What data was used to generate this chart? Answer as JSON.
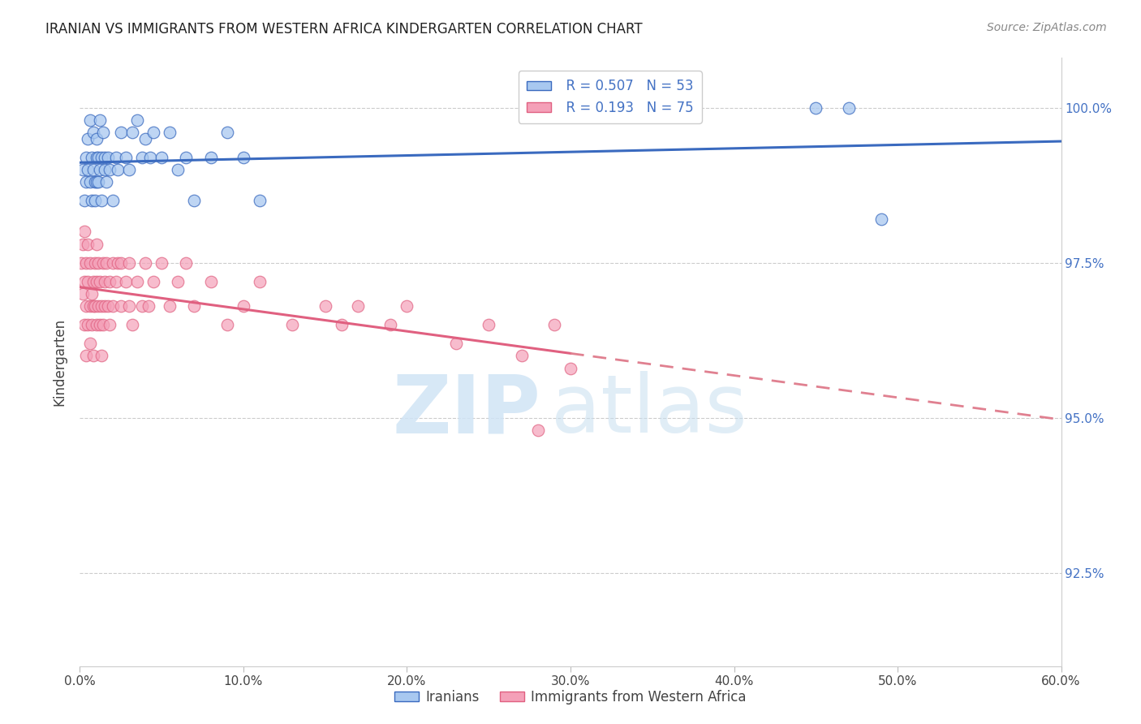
{
  "title": "IRANIAN VS IMMIGRANTS FROM WESTERN AFRICA KINDERGARTEN CORRELATION CHART",
  "source": "Source: ZipAtlas.com",
  "ylabel": "Kindergarten",
  "ytick_labels": [
    "92.5%",
    "95.0%",
    "97.5%",
    "100.0%"
  ],
  "ytick_values": [
    0.925,
    0.95,
    0.975,
    1.0
  ],
  "xmin": 0.0,
  "xmax": 0.6,
  "ymin": 0.91,
  "ymax": 1.008,
  "legend_r1": "R = 0.507",
  "legend_n1": "N = 53",
  "legend_r2": "R = 0.193",
  "legend_n2": "N = 75",
  "color_iranian": "#a8c8f0",
  "color_western_africa": "#f4a0b8",
  "color_line_iranian": "#3a6abf",
  "color_line_western_africa": "#e06080",
  "color_line_dashed": "#e08090",
  "watermark_zip": "ZIP",
  "watermark_atlas": "atlas",
  "iranians_x": [
    0.002,
    0.003,
    0.004,
    0.004,
    0.005,
    0.005,
    0.006,
    0.006,
    0.007,
    0.007,
    0.008,
    0.008,
    0.009,
    0.009,
    0.01,
    0.01,
    0.01,
    0.011,
    0.011,
    0.012,
    0.012,
    0.013,
    0.013,
    0.014,
    0.015,
    0.015,
    0.016,
    0.017,
    0.018,
    0.02,
    0.022,
    0.023,
    0.025,
    0.028,
    0.03,
    0.032,
    0.035,
    0.038,
    0.04,
    0.043,
    0.045,
    0.05,
    0.055,
    0.06,
    0.065,
    0.07,
    0.08,
    0.09,
    0.1,
    0.11,
    0.45,
    0.47,
    0.49
  ],
  "iranians_y": [
    0.99,
    0.985,
    0.988,
    0.992,
    0.99,
    0.995,
    0.988,
    0.998,
    0.985,
    0.992,
    0.99,
    0.996,
    0.988,
    0.985,
    0.992,
    0.988,
    0.995,
    0.992,
    0.988,
    0.99,
    0.998,
    0.985,
    0.992,
    0.996,
    0.99,
    0.992,
    0.988,
    0.992,
    0.99,
    0.985,
    0.992,
    0.99,
    0.996,
    0.992,
    0.99,
    0.996,
    0.998,
    0.992,
    0.995,
    0.992,
    0.996,
    0.992,
    0.996,
    0.99,
    0.992,
    0.985,
    0.992,
    0.996,
    0.992,
    0.985,
    1.0,
    1.0,
    0.982
  ],
  "western_africa_x": [
    0.001,
    0.002,
    0.002,
    0.003,
    0.003,
    0.003,
    0.004,
    0.004,
    0.004,
    0.005,
    0.005,
    0.005,
    0.006,
    0.006,
    0.006,
    0.007,
    0.007,
    0.008,
    0.008,
    0.008,
    0.009,
    0.009,
    0.01,
    0.01,
    0.01,
    0.011,
    0.011,
    0.012,
    0.012,
    0.013,
    0.013,
    0.014,
    0.014,
    0.015,
    0.015,
    0.016,
    0.017,
    0.018,
    0.018,
    0.02,
    0.02,
    0.022,
    0.023,
    0.025,
    0.025,
    0.028,
    0.03,
    0.03,
    0.032,
    0.035,
    0.038,
    0.04,
    0.042,
    0.045,
    0.05,
    0.055,
    0.06,
    0.065,
    0.07,
    0.08,
    0.09,
    0.1,
    0.11,
    0.13,
    0.15,
    0.16,
    0.17,
    0.19,
    0.2,
    0.23,
    0.25,
    0.27,
    0.29,
    0.3,
    0.28
  ],
  "western_africa_y": [
    0.975,
    0.97,
    0.978,
    0.972,
    0.965,
    0.98,
    0.968,
    0.975,
    0.96,
    0.972,
    0.965,
    0.978,
    0.968,
    0.962,
    0.975,
    0.97,
    0.965,
    0.972,
    0.968,
    0.96,
    0.975,
    0.968,
    0.972,
    0.965,
    0.978,
    0.968,
    0.975,
    0.965,
    0.972,
    0.968,
    0.96,
    0.975,
    0.965,
    0.972,
    0.968,
    0.975,
    0.968,
    0.972,
    0.965,
    0.975,
    0.968,
    0.972,
    0.975,
    0.968,
    0.975,
    0.972,
    0.968,
    0.975,
    0.965,
    0.972,
    0.968,
    0.975,
    0.968,
    0.972,
    0.975,
    0.968,
    0.972,
    0.975,
    0.968,
    0.972,
    0.965,
    0.968,
    0.972,
    0.965,
    0.968,
    0.965,
    0.968,
    0.965,
    0.968,
    0.962,
    0.965,
    0.96,
    0.965,
    0.958,
    0.948
  ]
}
